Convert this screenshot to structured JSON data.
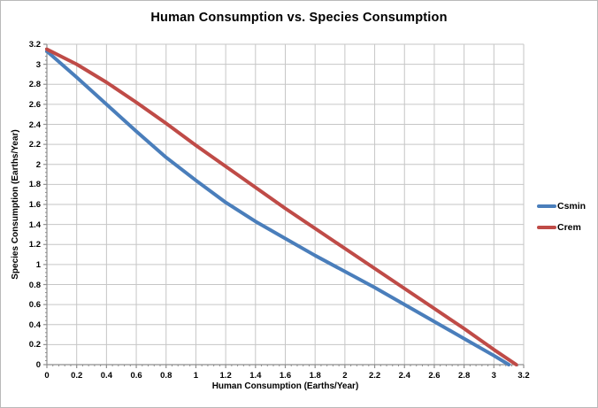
{
  "chart_data": {
    "type": "line",
    "title": "Human Consumption vs. Species Consumption",
    "xlabel": "Human Consumption (Earths/Year)",
    "ylabel": "Species Consumption (Earths/Year)",
    "xlim": [
      0,
      3.2
    ],
    "ylim": [
      0,
      3.2
    ],
    "tick_step": 0.2,
    "tick_labels": [
      "0",
      "0.2",
      "0.4",
      "0.6",
      "0.8",
      "1",
      "1.2",
      "1.4",
      "1.6",
      "1.8",
      "2",
      "2.2",
      "2.4",
      "2.6",
      "2.8",
      "3",
      "3.2"
    ],
    "grid": true,
    "legend_position": "right",
    "colors": {
      "grid": "#c6c6c6",
      "axis": "#8e8e8e",
      "tick": "#8e8e8e",
      "frame_border": "#b9b9b9",
      "background": "#ffffff"
    },
    "series": [
      {
        "name": "Csmin",
        "color": "#4a7ebb",
        "x": [
          0,
          0.2,
          0.4,
          0.6,
          0.8,
          1.0,
          1.2,
          1.4,
          1.6,
          1.8,
          2.0,
          2.2,
          2.4,
          2.6,
          2.8,
          3.0,
          3.1
        ],
        "y": [
          3.13,
          2.87,
          2.6,
          2.33,
          2.07,
          1.84,
          1.62,
          1.43,
          1.26,
          1.09,
          0.93,
          0.77,
          0.6,
          0.43,
          0.26,
          0.09,
          0
        ]
      },
      {
        "name": "Crem",
        "color": "#bf4b47",
        "x": [
          0,
          0.2,
          0.4,
          0.6,
          0.8,
          1.0,
          1.2,
          1.4,
          1.6,
          1.8,
          2.0,
          2.2,
          2.4,
          2.6,
          2.8,
          3.0,
          3.15
        ],
        "y": [
          3.15,
          3.0,
          2.82,
          2.62,
          2.41,
          2.19,
          1.98,
          1.77,
          1.56,
          1.36,
          1.16,
          0.96,
          0.76,
          0.56,
          0.36,
          0.15,
          0
        ]
      }
    ]
  }
}
